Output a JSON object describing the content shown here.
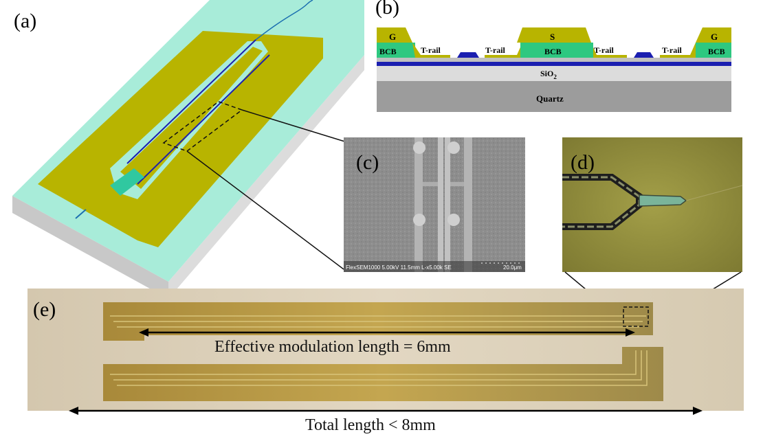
{
  "panels": {
    "a": {
      "label": "(a)"
    },
    "b": {
      "label": "(b)"
    },
    "c": {
      "label": "(c)",
      "sem_caption": "FlexSEM1000 5.00kV 11.5mm L-x5.00k SE",
      "scale_label": "20.0μm"
    },
    "d": {
      "label": "(d)"
    },
    "e": {
      "label": "(e)"
    }
  },
  "cross_section": {
    "layers": {
      "g_left": "G",
      "bcb_left": "BCB",
      "trail_1": "T-rail",
      "trail_2": "T-rail",
      "s": "S",
      "bcb_center": "BCB",
      "trail_3": "T-rail",
      "trail_4": "T-rail",
      "g_right": "G",
      "bcb_right": "BCB",
      "sio2_main": "SiO",
      "sio2_sub": "2",
      "quartz": "Quartz"
    }
  },
  "annotations": {
    "effective_length": "Effective modulation length = 6mm",
    "total_length": "Total length < 8mm"
  },
  "colors": {
    "electrode": "#b8b400",
    "bcb": "#2ec880",
    "waveguide": "#1b1fb0",
    "sio2": "#dcdcdc",
    "quartz": "#9c9c9c",
    "substrate_top": "#a8ecd9",
    "chip_bg": "#d8cbb3",
    "optical_bg": "#8e8a3e"
  }
}
